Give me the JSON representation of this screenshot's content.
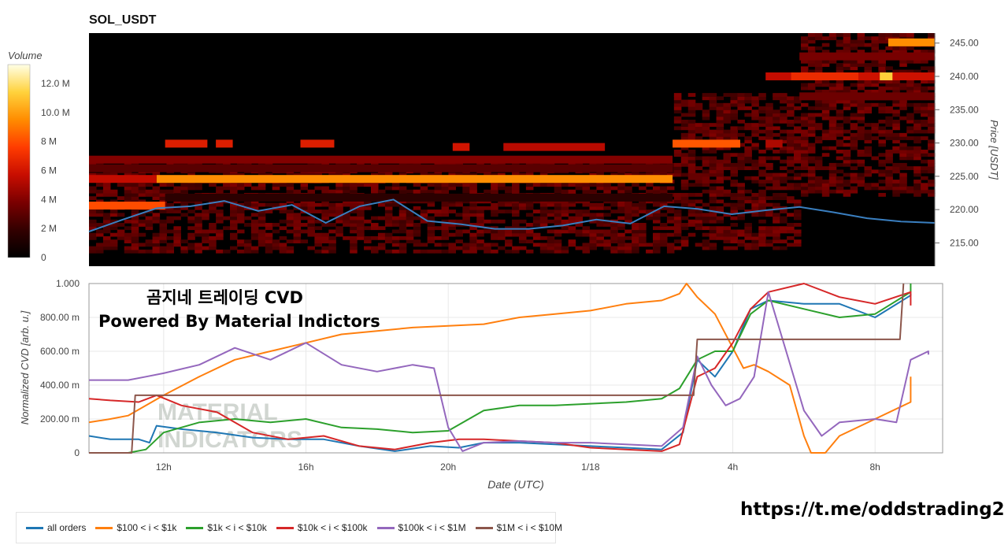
{
  "title": "SOL_USDT",
  "overlay_title": "곰지네 트레이딩 CVD",
  "overlay_subtitle": "Powered By Material Indictors",
  "watermark": "MATERIAL INDICATORS",
  "telegram": "https://t.me/oddstrading2",
  "chart_data": [
    {
      "type": "heatmap",
      "title": "SOL_USDT",
      "ylabel": "Price [USDT]",
      "y_ticks": [
        215,
        220,
        225,
        230,
        235,
        240,
        245
      ],
      "ylim": [
        211.5,
        246.5
      ],
      "colorbar": {
        "title": "Volume",
        "ticks": [
          "0",
          "2 M",
          "4 M",
          "6 M",
          "8 M",
          "10.0 M",
          "12.0 M"
        ],
        "tick_values": [
          0,
          2,
          4,
          6,
          8,
          10,
          12
        ],
        "max": 13.3,
        "colors": [
          "#000000",
          "#330000",
          "#7a0000",
          "#c80d00",
          "#ff3c00",
          "#ff8c00",
          "#ffd23c",
          "#ffffe6"
        ]
      },
      "price_line": {
        "color": "#3a7fc0",
        "x": [
          0,
          4,
          8,
          12,
          16,
          20,
          24,
          28,
          32,
          36,
          40,
          44,
          48,
          52,
          56,
          60,
          64,
          68,
          72,
          76,
          80,
          84,
          88,
          92,
          96,
          100
        ],
        "y": [
          216.7,
          218.5,
          220.2,
          220.5,
          221.3,
          219.8,
          220.7,
          218.0,
          220.5,
          221.5,
          218.3,
          217.8,
          217.1,
          217.1,
          217.6,
          218.5,
          217.9,
          220.5,
          220.1,
          219.3,
          219.9,
          220.4,
          219.6,
          218.7,
          218.2,
          218.0
        ]
      }
    },
    {
      "type": "line",
      "xlabel": "Date (UTC)",
      "ylabel": "Normalized CVD [arb. u.]",
      "x_ticks": [
        "12h",
        "16h",
        "20h",
        "1/18",
        "4h",
        "8h"
      ],
      "ylim": [
        0,
        1
      ],
      "y_ticks": [
        "0",
        "200.00 m",
        "400.00 m",
        "600.00 m",
        "800.00 m",
        "1.000"
      ],
      "series": [
        {
          "name": "all orders",
          "color": "#1f77b4",
          "points": [
            [
              9.9,
              0.1
            ],
            [
              10.5,
              0.08
            ],
            [
              11.3,
              0.08
            ],
            [
              11.6,
              0.06
            ],
            [
              11.8,
              0.16
            ],
            [
              12.5,
              0.14
            ],
            [
              13.5,
              0.12
            ],
            [
              14.5,
              0.09
            ],
            [
              15.5,
              0.08
            ],
            [
              16.5,
              0.08
            ],
            [
              17.5,
              0.04
            ],
            [
              18.5,
              0.01
            ],
            [
              19.5,
              0.04
            ],
            [
              20.3,
              0.03
            ],
            [
              21,
              0.06
            ],
            [
              22,
              0.06
            ],
            [
              23,
              0.05
            ],
            [
              0,
              0.04
            ],
            [
              1,
              0.03
            ],
            [
              2,
              0.02
            ],
            [
              2.6,
              0.12
            ],
            [
              3,
              0.55
            ],
            [
              3.5,
              0.45
            ],
            [
              4,
              0.6
            ],
            [
              4.5,
              0.85
            ],
            [
              5,
              0.9
            ],
            [
              6,
              0.88
            ],
            [
              7,
              0.88
            ],
            [
              8,
              0.8
            ],
            [
              9,
              0.93
            ],
            [
              9.9,
              0.94
            ]
          ]
        },
        {
          "name": "$100 < i < $1k",
          "color": "#ff7f0e",
          "points": [
            [
              9.9,
              0.18
            ],
            [
              10.5,
              0.2
            ],
            [
              11,
              0.22
            ],
            [
              12,
              0.34
            ],
            [
              13,
              0.45
            ],
            [
              14,
              0.55
            ],
            [
              15,
              0.6
            ],
            [
              16,
              0.65
            ],
            [
              17,
              0.7
            ],
            [
              18,
              0.72
            ],
            [
              19,
              0.74
            ],
            [
              20,
              0.75
            ],
            [
              21,
              0.76
            ],
            [
              22,
              0.8
            ],
            [
              23,
              0.82
            ],
            [
              0,
              0.84
            ],
            [
              1,
              0.88
            ],
            [
              2,
              0.9
            ],
            [
              2.5,
              0.94
            ],
            [
              2.7,
              1.0
            ],
            [
              3,
              0.92
            ],
            [
              3.5,
              0.82
            ],
            [
              4,
              0.62
            ],
            [
              4.3,
              0.5
            ],
            [
              4.6,
              0.52
            ],
            [
              5,
              0.48
            ],
            [
              5.6,
              0.4
            ],
            [
              6,
              0.1
            ],
            [
              6.2,
              0.0
            ],
            [
              6.6,
              0.0
            ],
            [
              7,
              0.1
            ],
            [
              8,
              0.2
            ],
            [
              9,
              0.3
            ],
            [
              9.9,
              0.45
            ]
          ]
        },
        {
          "name": "$1k < i < $10k",
          "color": "#2ca02c",
          "points": [
            [
              9.9,
              0.0
            ],
            [
              11,
              0.0
            ],
            [
              11.5,
              0.02
            ],
            [
              12,
              0.12
            ],
            [
              13,
              0.18
            ],
            [
              14,
              0.2
            ],
            [
              15,
              0.18
            ],
            [
              16,
              0.2
            ],
            [
              17,
              0.15
            ],
            [
              18,
              0.14
            ],
            [
              19,
              0.12
            ],
            [
              20,
              0.13
            ],
            [
              21,
              0.25
            ],
            [
              22,
              0.28
            ],
            [
              23,
              0.28
            ],
            [
              0,
              0.29
            ],
            [
              1,
              0.3
            ],
            [
              2,
              0.32
            ],
            [
              2.5,
              0.38
            ],
            [
              3,
              0.55
            ],
            [
              3.5,
              0.6
            ],
            [
              4,
              0.6
            ],
            [
              4.5,
              0.82
            ],
            [
              5,
              0.9
            ],
            [
              6,
              0.85
            ],
            [
              7,
              0.8
            ],
            [
              8,
              0.82
            ],
            [
              9,
              0.95
            ],
            [
              9.9,
              1.0
            ]
          ]
        },
        {
          "name": "$10k < i < $100k",
          "color": "#d62728",
          "points": [
            [
              9.9,
              0.32
            ],
            [
              10.5,
              0.31
            ],
            [
              11.3,
              0.3
            ],
            [
              11.8,
              0.34
            ],
            [
              12.5,
              0.28
            ],
            [
              13.5,
              0.24
            ],
            [
              14.5,
              0.12
            ],
            [
              15.5,
              0.08
            ],
            [
              16.5,
              0.1
            ],
            [
              17.5,
              0.04
            ],
            [
              18.5,
              0.02
            ],
            [
              19.5,
              0.06
            ],
            [
              20.3,
              0.08
            ],
            [
              21,
              0.08
            ],
            [
              22,
              0.07
            ],
            [
              23,
              0.06
            ],
            [
              0,
              0.03
            ],
            [
              1,
              0.02
            ],
            [
              2,
              0.01
            ],
            [
              2.5,
              0.05
            ],
            [
              3,
              0.45
            ],
            [
              3.5,
              0.5
            ],
            [
              4,
              0.65
            ],
            [
              4.5,
              0.85
            ],
            [
              5,
              0.95
            ],
            [
              6,
              1.0
            ],
            [
              7,
              0.92
            ],
            [
              8,
              0.88
            ],
            [
              9,
              0.95
            ],
            [
              9.9,
              0.87
            ]
          ]
        },
        {
          "name": "$100k < i < $1M",
          "color": "#9467bd",
          "points": [
            [
              9.9,
              0.43
            ],
            [
              11,
              0.43
            ],
            [
              11.5,
              0.45
            ],
            [
              12,
              0.47
            ],
            [
              13,
              0.52
            ],
            [
              14,
              0.62
            ],
            [
              15,
              0.55
            ],
            [
              16,
              0.65
            ],
            [
              17,
              0.52
            ],
            [
              18,
              0.48
            ],
            [
              19,
              0.52
            ],
            [
              19.6,
              0.5
            ],
            [
              20,
              0.15
            ],
            [
              20.4,
              0.01
            ],
            [
              21,
              0.06
            ],
            [
              22,
              0.07
            ],
            [
              23,
              0.06
            ],
            [
              0,
              0.06
            ],
            [
              1,
              0.05
            ],
            [
              2,
              0.04
            ],
            [
              2.6,
              0.15
            ],
            [
              3,
              0.57
            ],
            [
              3.4,
              0.4
            ],
            [
              3.8,
              0.28
            ],
            [
              4.2,
              0.32
            ],
            [
              4.6,
              0.45
            ],
            [
              5,
              0.95
            ],
            [
              5.5,
              0.6
            ],
            [
              6,
              0.25
            ],
            [
              6.5,
              0.1
            ],
            [
              7,
              0.18
            ],
            [
              8,
              0.2
            ],
            [
              8.6,
              0.18
            ],
            [
              9,
              0.55
            ],
            [
              9.5,
              0.6
            ],
            [
              9.9,
              0.58
            ]
          ]
        },
        {
          "name": "$1M < i < $10M",
          "color": "#8c564b",
          "points": [
            [
              9.9,
              0.0
            ],
            [
              11.1,
              0.0
            ],
            [
              11.2,
              0.34
            ],
            [
              23.5,
              0.34
            ],
            [
              2.9,
              0.34
            ],
            [
              3.0,
              0.67
            ],
            [
              7.6,
              0.67
            ],
            [
              8.7,
              0.67
            ],
            [
              8.8,
              1.0
            ],
            [
              9.9,
              1.0
            ]
          ]
        }
      ]
    }
  ]
}
